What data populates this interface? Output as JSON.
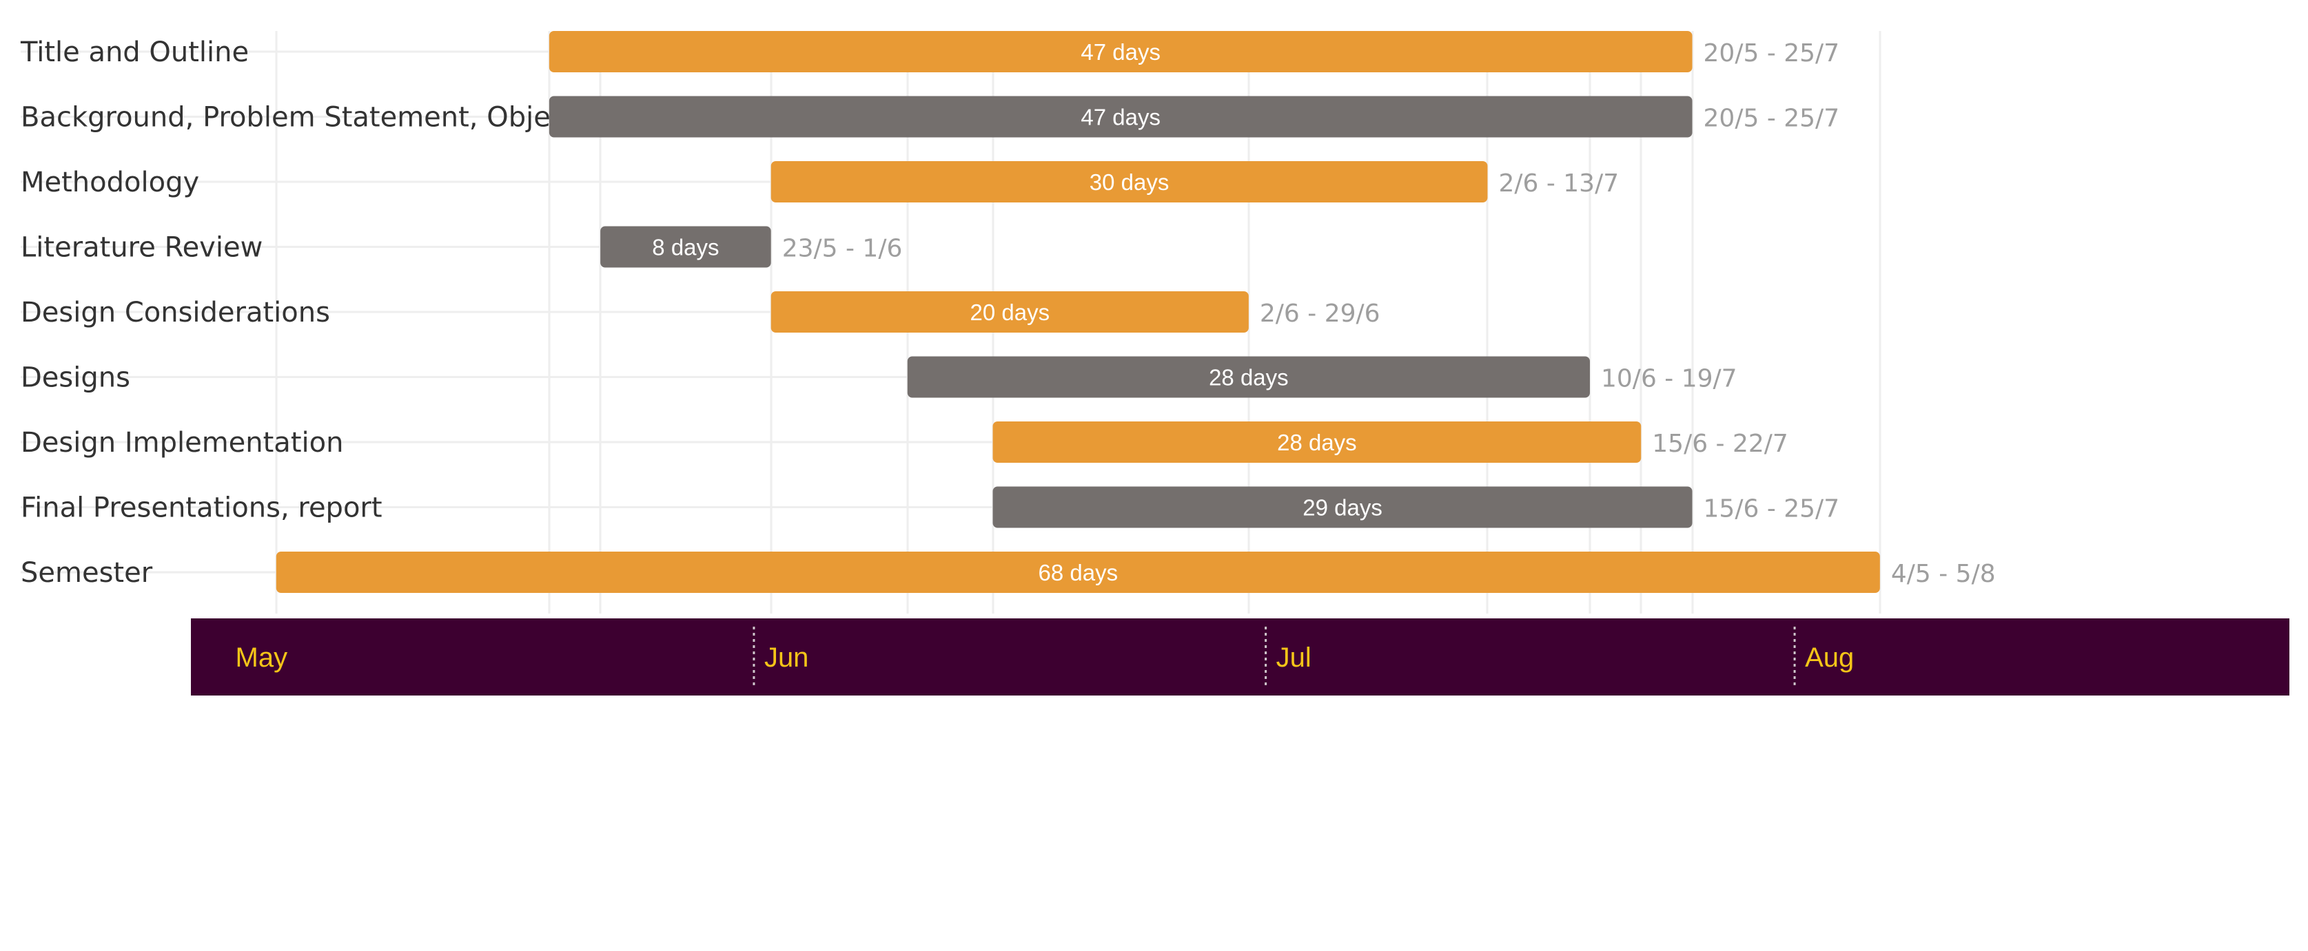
{
  "chart_data": {
    "type": "gantt",
    "title": "",
    "xlabel": "",
    "ylabel": "",
    "year": 2023,
    "x_range": [
      "2023-04-29",
      "2023-08-30"
    ],
    "months": [
      {
        "label": "May",
        "start": "2023-05-01"
      },
      {
        "label": "Jun",
        "start": "2023-06-01"
      },
      {
        "label": "Jul",
        "start": "2023-07-01"
      },
      {
        "label": "Aug",
        "start": "2023-08-01"
      }
    ],
    "tasks": [
      {
        "name": "Title and Outline",
        "start": "2023-05-20",
        "end": "2023-07-25",
        "duration_label": "47 days",
        "range_label": "20/5 - 25/7",
        "color": "#e89a35"
      },
      {
        "name": "Background, Problem Statement, Objectives, expected outcomes",
        "start": "2023-05-20",
        "end": "2023-07-25",
        "duration_label": "47 days",
        "range_label": "20/5 - 25/7",
        "color": "#746f6d"
      },
      {
        "name": "Methodology",
        "start": "2023-06-02",
        "end": "2023-07-13",
        "duration_label": "30 days",
        "range_label": "2/6 - 13/7",
        "color": "#e89a35"
      },
      {
        "name": "Literature Review",
        "start": "2023-05-23",
        "end": "2023-06-01",
        "duration_label": "8 days",
        "range_label": "23/5 - 1/6",
        "color": "#746f6d"
      },
      {
        "name": "Design Considerations",
        "start": "2023-06-02",
        "end": "2023-06-29",
        "duration_label": "20 days",
        "range_label": "2/6 - 29/6",
        "color": "#e89a35"
      },
      {
        "name": "Designs",
        "start": "2023-06-10",
        "end": "2023-07-19",
        "duration_label": "28 days",
        "range_label": "10/6 - 19/7",
        "color": "#746f6d"
      },
      {
        "name": "Design Implementation",
        "start": "2023-06-15",
        "end": "2023-07-22",
        "duration_label": "28 days",
        "range_label": "15/6 - 22/7",
        "color": "#e89a35"
      },
      {
        "name": "Final Presentations, report",
        "start": "2023-06-15",
        "end": "2023-07-25",
        "duration_label": "29 days",
        "range_label": "15/6 - 25/7",
        "color": "#746f6d"
      },
      {
        "name": "Semester",
        "start": "2023-05-04",
        "end": "2023-08-05",
        "duration_label": "68 days",
        "range_label": "4/5 - 5/8",
        "color": "#e89a35"
      }
    ],
    "colors": {
      "primary": "#e89a35",
      "secondary": "#746f6d",
      "axis_background": "#3d0030",
      "month_text": "#f5c518",
      "grid": "#eeeeee",
      "range_text": "#9e9e9e",
      "task_text": "#333333"
    }
  }
}
